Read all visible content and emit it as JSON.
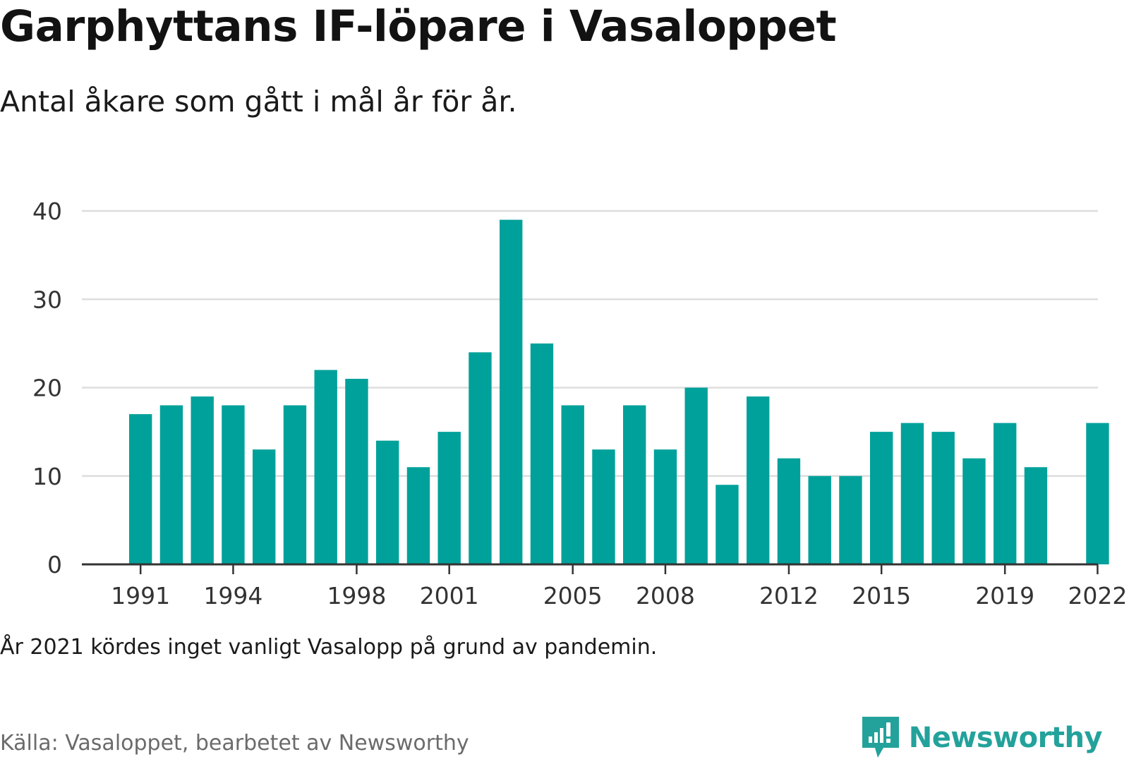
{
  "title": "Garphyttans IF-löpare i Vasaloppet",
  "subtitle": "Antal åkare som gått i mål år för år.",
  "note": "År 2021 kördes inget vanligt Vasalopp på grund av pandemin.",
  "source": "Källa: Vasaloppet, bearbetet av Newsworthy",
  "brand": {
    "name": "Newsworthy",
    "icon": "newsworthy-logo-icon"
  },
  "colors": {
    "bar": "#00a19a",
    "grid": "#dedede",
    "axis": "#333333",
    "tick_text": "#333333",
    "brand": "#23a29b"
  },
  "chart_data": {
    "type": "bar",
    "categories": [
      "1991",
      "1992",
      "1993",
      "1994",
      "1995",
      "1996",
      "1997",
      "1998",
      "1999",
      "2000",
      "2001",
      "2002",
      "2003",
      "2004",
      "2005",
      "2006",
      "2007",
      "2008",
      "2009",
      "2010",
      "2011",
      "2012",
      "2013",
      "2014",
      "2015",
      "2016",
      "2017",
      "2018",
      "2019",
      "2020",
      "2021",
      "2022"
    ],
    "values": [
      17,
      18,
      19,
      18,
      13,
      18,
      22,
      21,
      14,
      11,
      15,
      24,
      39,
      25,
      18,
      13,
      18,
      13,
      20,
      9,
      19,
      12,
      10,
      10,
      15,
      16,
      15,
      12,
      16,
      11,
      null,
      16
    ],
    "x_tick_labels": [
      "1991",
      "1994",
      "1998",
      "2001",
      "2005",
      "2008",
      "2012",
      "2015",
      "2019",
      "2022"
    ],
    "y_ticks": [
      0,
      10,
      20,
      30,
      40
    ],
    "ylim": [
      0,
      40
    ],
    "grid": true,
    "legend": "none"
  }
}
